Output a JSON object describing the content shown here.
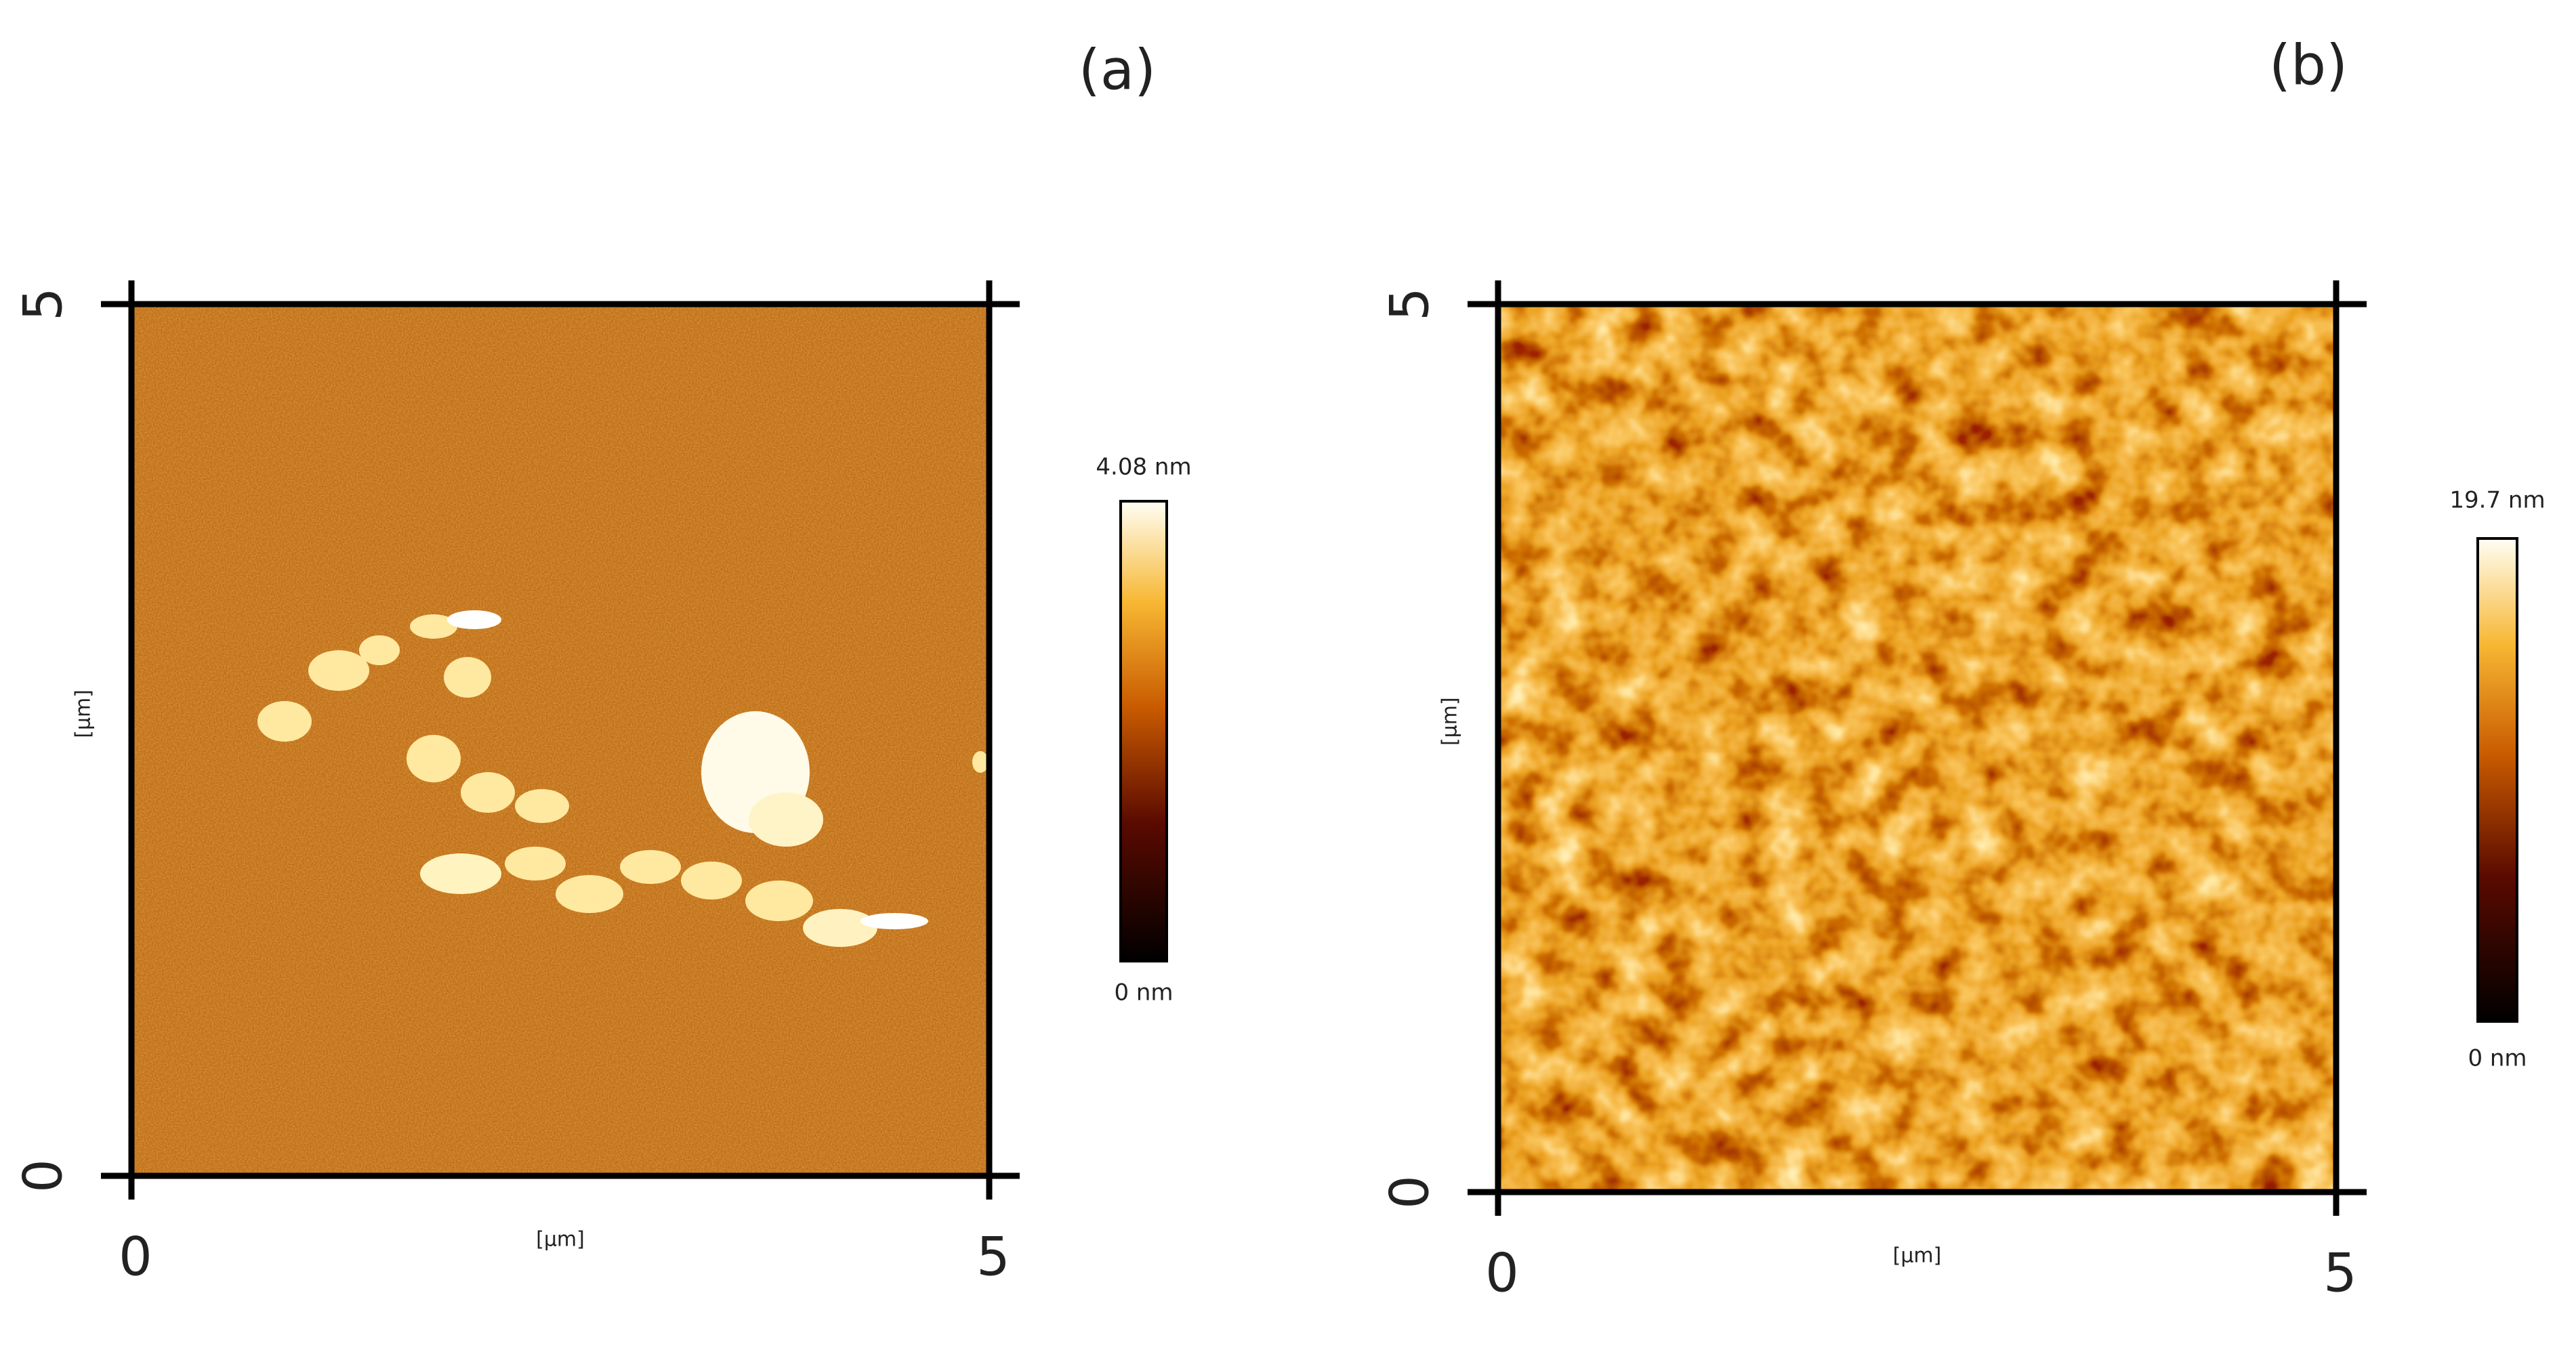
{
  "panels": [
    {
      "label": "(a)",
      "x_axis": {
        "label": "[µm]",
        "ticks": [
          "0",
          "5"
        ]
      },
      "y_axis": {
        "label": "[µm]",
        "ticks": [
          "0",
          "5"
        ]
      },
      "colorbar": {
        "max_label": "4.08 nm",
        "min_label": "0 nm"
      }
    },
    {
      "label": "(b)",
      "x_axis": {
        "label": "[µm]",
        "ticks": [
          "0",
          "5"
        ]
      },
      "y_axis": {
        "label": "[µm]",
        "ticks": [
          "0",
          "5"
        ]
      },
      "colorbar": {
        "max_label": "19.7 nm",
        "min_label": "0 nm"
      }
    }
  ]
}
